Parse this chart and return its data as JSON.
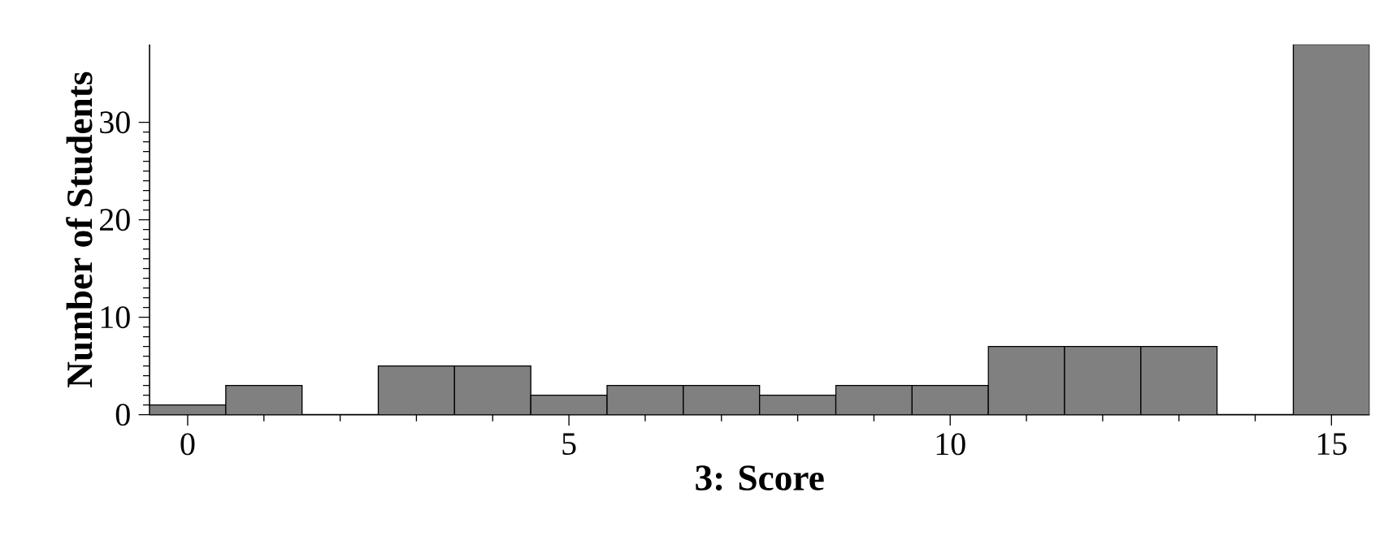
{
  "chart_data": {
    "type": "histogram",
    "xlabel": "3: Score",
    "ylabel": "Number of Students",
    "bins": [
      -0.5,
      0.5,
      1.5,
      2.5,
      3.5,
      4.5,
      5.5,
      6.5,
      7.5,
      8.5,
      9.5,
      10.5,
      11.5,
      12.5,
      13.5,
      14.5,
      15.5
    ],
    "values": [
      1,
      3,
      0,
      5,
      5,
      2,
      3,
      3,
      2,
      3,
      3,
      7,
      7,
      7,
      0,
      38
    ],
    "color": "#808080",
    "xlim": [
      -0.5,
      15.5
    ],
    "ylim": [
      0,
      38
    ],
    "xticks": [
      0,
      5,
      10,
      15
    ],
    "yticks": [
      0,
      10,
      20,
      30
    ],
    "grid": false
  }
}
